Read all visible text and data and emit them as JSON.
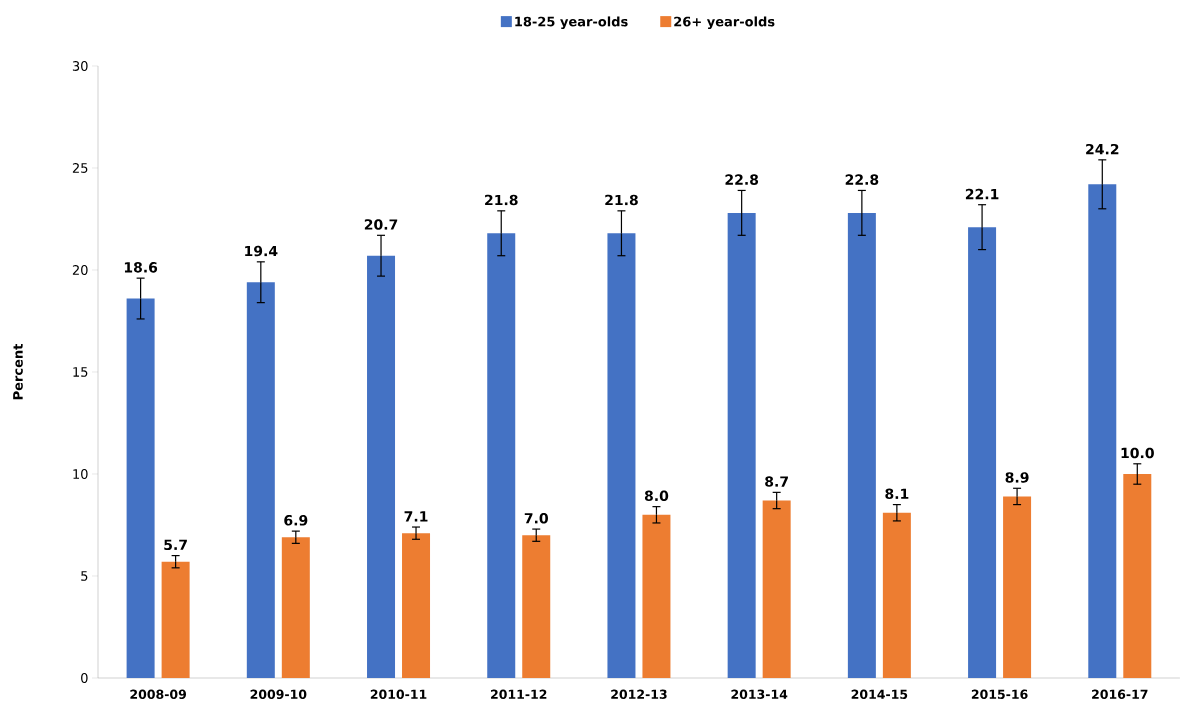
{
  "chart_data": {
    "type": "bar",
    "ylabel": "Percent",
    "categories": [
      "2008-09",
      "2009-10",
      "2010-11",
      "2011-12",
      "2012-13",
      "2013-14",
      "2014-15",
      "2015-16",
      "2016-17"
    ],
    "series": [
      {
        "name": "18-25 year-olds",
        "color": "#4472c4",
        "values": [
          18.6,
          19.4,
          20.7,
          21.8,
          21.8,
          22.8,
          22.8,
          22.1,
          24.2
        ],
        "errors": [
          1.0,
          1.0,
          1.0,
          1.1,
          1.1,
          1.1,
          1.1,
          1.1,
          1.2
        ],
        "value_labels": [
          "18.6",
          "19.4",
          "20.7",
          "21.8",
          "21.8",
          "22.8",
          "22.8",
          "22.1",
          "24.2"
        ]
      },
      {
        "name": "26+ year-olds",
        "color": "#ed7d31",
        "values": [
          5.7,
          6.9,
          7.1,
          7.0,
          8.0,
          8.7,
          8.1,
          8.9,
          10.0
        ],
        "errors": [
          0.3,
          0.3,
          0.3,
          0.3,
          0.4,
          0.4,
          0.4,
          0.4,
          0.5
        ],
        "value_labels": [
          "5.7",
          "6.9",
          "7.1",
          "7.0",
          "8.0",
          "8.7",
          "8.1",
          "8.9",
          "10.0"
        ]
      }
    ],
    "ylim": [
      0,
      30
    ],
    "yticks": [
      0,
      5,
      10,
      15,
      20,
      25,
      30
    ],
    "legend": "top",
    "grid": false
  }
}
